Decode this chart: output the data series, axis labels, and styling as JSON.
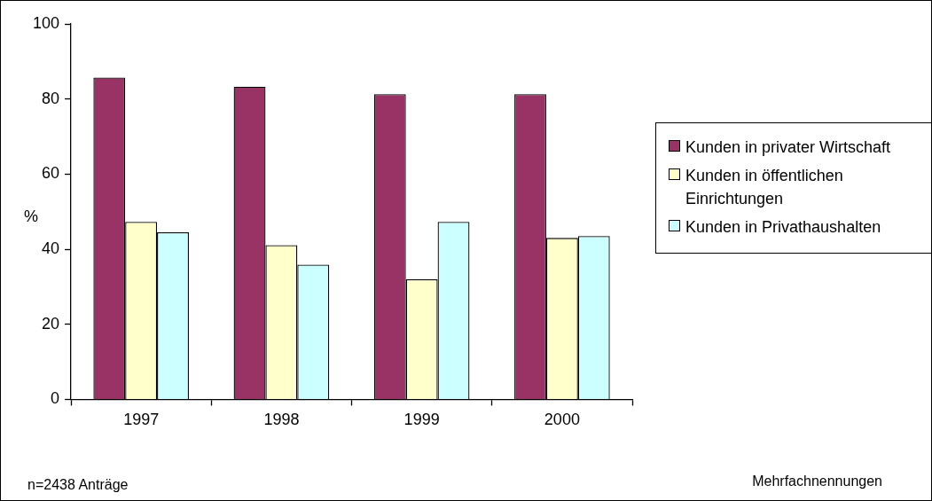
{
  "chart_data": {
    "type": "bar",
    "ylabel": "%",
    "categories": [
      "1997",
      "1998",
      "1999",
      "2000"
    ],
    "series": [
      {
        "name": "Kunden in privater Wirtschaft",
        "color": "#993366",
        "values": [
          85.7,
          83.3,
          81.3,
          81.3
        ]
      },
      {
        "name": "Kunden in öffentlichen Einrichtungen",
        "color": "#ffffcc",
        "values": [
          47.3,
          41.1,
          32.0,
          43.0
        ]
      },
      {
        "name": "Kunden in Privathaushalten",
        "color": "#ccffff",
        "values": [
          44.5,
          35.9,
          47.3,
          43.5
        ]
      }
    ],
    "ylim": [
      0,
      100
    ],
    "yticks": [
      0,
      20,
      40,
      60,
      80,
      100
    ],
    "grid": false,
    "legend": "right",
    "annotations": [
      "n=2438 Anträge",
      "Mehrfachnennungen"
    ]
  }
}
